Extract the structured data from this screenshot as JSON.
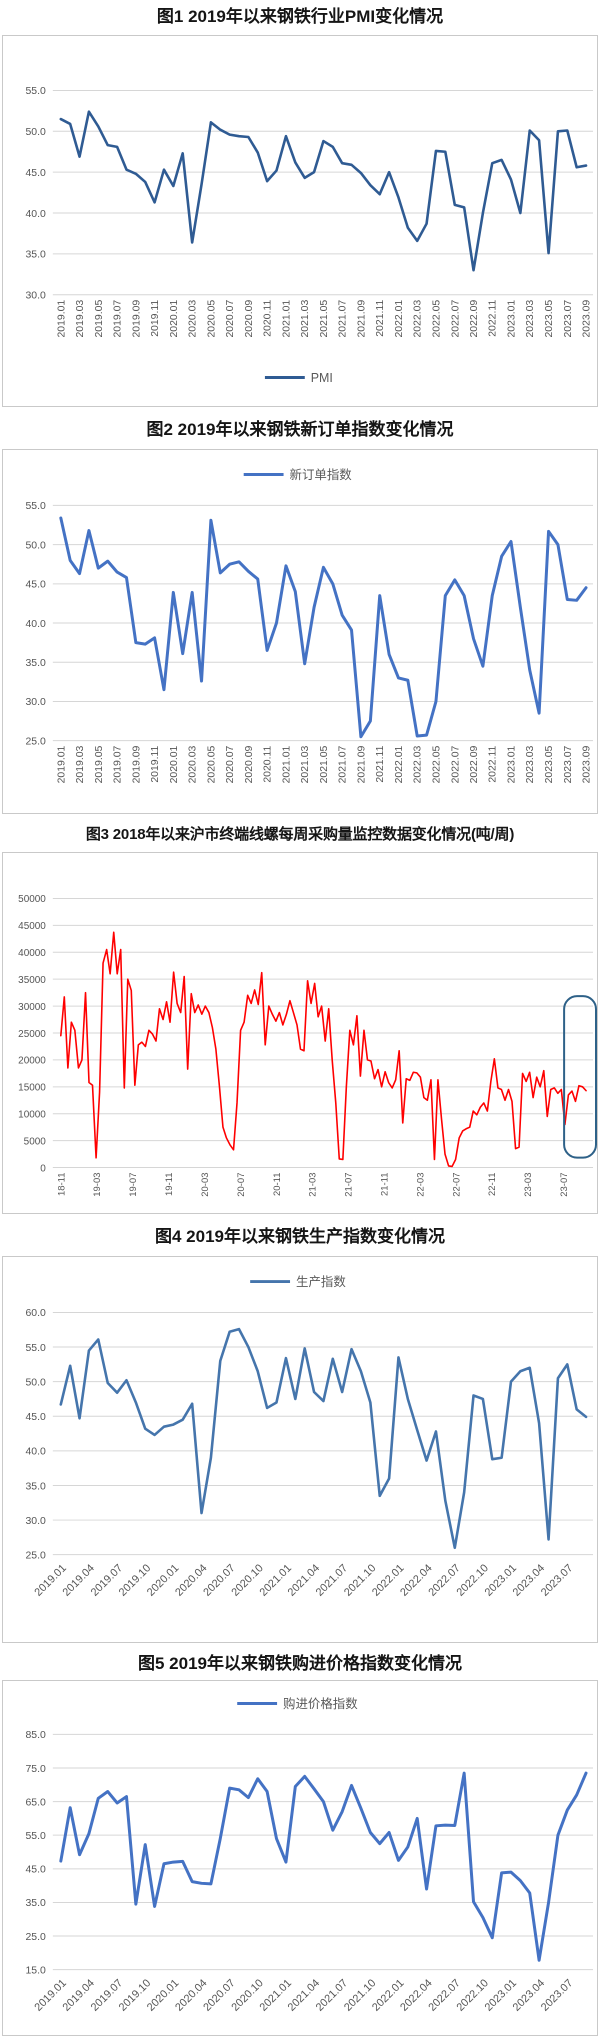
{
  "page": {
    "background": "#ffffff"
  },
  "chart_data": [
    {
      "type": "line",
      "title": "图1 2019年以来钢铁行业PMI变化情况",
      "legend": "PMI",
      "legend_position": "bottom-center",
      "line_color": "#2F5B93",
      "xlabel": "",
      "ylabel": "",
      "ylim": [
        30,
        55
      ],
      "grid": true,
      "yticks": [
        "55.0",
        "50.0",
        "45.0",
        "40.0",
        "35.0",
        "30.0"
      ],
      "x_tick_labels": [
        "2019.01",
        "2019.03",
        "2019.05",
        "2019.07",
        "2019.09",
        "2019.11",
        "2020.01",
        "2020.03",
        "2020.05",
        "2020.07",
        "2020.09",
        "2020.11",
        "2021.01",
        "2021.03",
        "2021.05",
        "2021.07",
        "2021.09",
        "2021.11",
        "2022.01",
        "2022.03",
        "2022.05",
        "2022.07",
        "2022.09",
        "2022.11",
        "2023.01",
        "2023.03",
        "2023.05",
        "2023.07",
        "2023.09"
      ],
      "x_range": [
        "2019.01",
        "2023.09"
      ],
      "series": [
        {
          "name": "PMI",
          "values": [
            51.5,
            50.9,
            46.9,
            52.4,
            50.6,
            48.3,
            48.1,
            45.3,
            44.8,
            43.8,
            41.3,
            45.3,
            43.3,
            47.3,
            36.4,
            43.5,
            51.1,
            50.2,
            49.6,
            49.4,
            49.3,
            47.4,
            43.9,
            45.2,
            49.4,
            46.2,
            44.3,
            45.0,
            48.8,
            48.1,
            46.1,
            45.9,
            44.9,
            43.4,
            42.3,
            45.0,
            41.9,
            38.2,
            36.6,
            38.7,
            47.6,
            47.5,
            41.0,
            40.7,
            33.0,
            40.0,
            46.1,
            46.5,
            44.1,
            40.0,
            50.1,
            48.9,
            35.1,
            50.0,
            50.1,
            45.6,
            45.8
          ]
        }
      ]
    },
    {
      "type": "line",
      "title": "图2 2019年以来钢铁新订单指数变化情况",
      "legend": "新订单指数",
      "legend_position": "top-center",
      "line_color": "#4472C4",
      "xlabel": "",
      "ylabel": "",
      "ylim": [
        25,
        55
      ],
      "grid": true,
      "yticks": [
        "55.0",
        "50.0",
        "45.0",
        "40.0",
        "35.0",
        "30.0",
        "25.0"
      ],
      "x_tick_labels": [
        "2019.01",
        "2019.03",
        "2019.05",
        "2019.07",
        "2019.09",
        "2019.11",
        "2020.01",
        "2020.03",
        "2020.05",
        "2020.07",
        "2020.09",
        "2020.11",
        "2021.01",
        "2021.03",
        "2021.05",
        "2021.07",
        "2021.09",
        "2021.11",
        "2022.01",
        "2022.03",
        "2022.05",
        "2022.07",
        "2022.09",
        "2022.11",
        "2023.01",
        "2023.03",
        "2023.05",
        "2023.07",
        "2023.09"
      ],
      "x_range": [
        "2019.01",
        "2023.09"
      ],
      "series": [
        {
          "name": "新订单指数",
          "values": [
            53.4,
            48.0,
            46.3,
            51.8,
            47.0,
            47.9,
            46.5,
            45.8,
            37.5,
            37.3,
            38.1,
            31.5,
            43.9,
            36.1,
            43.9,
            32.6,
            53.1,
            46.4,
            47.5,
            47.8,
            46.6,
            45.6,
            36.5,
            40.0,
            47.3,
            44.0,
            34.8,
            42.0,
            47.1,
            45.0,
            41.0,
            39.1,
            25.5,
            27.5,
            43.5,
            36.0,
            33.0,
            32.7,
            25.6,
            25.7,
            30.0,
            43.5,
            45.5,
            43.5,
            38.0,
            34.5,
            43.5,
            48.5,
            50.4,
            42.0,
            34.0,
            28.5,
            51.7,
            50.0,
            43.0,
            42.9,
            44.5
          ]
        }
      ]
    },
    {
      "type": "line",
      "title": "图3 2018年以来沪市终端线螺每周采购量监控数据变化情况(吨/周)",
      "legend": null,
      "legend_position": "none",
      "line_color": "#FF0000",
      "xlabel": "",
      "ylabel": "",
      "ylim": [
        0,
        50000
      ],
      "grid": true,
      "yticks": [
        "50000",
        "45000",
        "40000",
        "35000",
        "30000",
        "25000",
        "20000",
        "15000",
        "10000",
        "5000",
        "0"
      ],
      "x_tick_labels": [
        "18-11",
        "19-03",
        "19-07",
        "19-11",
        "20-03",
        "20-07",
        "20-11",
        "21-03",
        "21-07",
        "21-11",
        "22-03",
        "22-07",
        "22-11",
        "23-03",
        "23-07"
      ],
      "x_range": [
        "2018-11",
        "2023-09"
      ],
      "annotation": {
        "type": "box",
        "color": "#2E6188",
        "marks": "recent weeks highlighted"
      },
      "series": [
        {
          "name": "每周采购量(吨/周)",
          "values": [
            24500,
            31700,
            18500,
            27000,
            25500,
            18500,
            20000,
            32500,
            15800,
            15300,
            1800,
            14000,
            38000,
            40500,
            36000,
            43700,
            36000,
            40500,
            14800,
            35000,
            32900,
            15300,
            22800,
            23300,
            22500,
            25500,
            24800,
            23500,
            29500,
            27500,
            30800,
            27000,
            36300,
            30500,
            28800,
            35500,
            18300,
            32300,
            28800,
            30200,
            28500,
            30000,
            28800,
            26000,
            22000,
            15000,
            7500,
            5500,
            4200,
            3300,
            12000,
            25500,
            27000,
            32000,
            30500,
            33000,
            30300,
            36200,
            22800,
            30000,
            28500,
            27200,
            28800,
            26500,
            28500,
            31000,
            28800,
            26500,
            22000,
            21700,
            34700,
            30500,
            34200,
            28000,
            30000,
            23500,
            29500,
            20000,
            12000,
            1600,
            1500,
            15000,
            25500,
            22800,
            28200,
            17000,
            25500,
            20000,
            19800,
            16500,
            18200,
            15000,
            17800,
            15800,
            14800,
            16300,
            21700,
            8300,
            16500,
            16200,
            17700,
            17600,
            16800,
            13000,
            12500,
            16300,
            1500,
            16300,
            9000,
            2500,
            300,
            200,
            1500,
            5500,
            6800,
            7200,
            7500,
            10500,
            9800,
            11200,
            12000,
            10500,
            16000,
            20200,
            14800,
            14500,
            12500,
            14500,
            12300,
            3500,
            3800,
            17500,
            16000,
            17700,
            13000,
            16800,
            15000,
            18000,
            9500,
            14500,
            14800,
            13800,
            14500,
            8000,
            13500,
            14200,
            12300,
            15200,
            15000,
            14300
          ]
        }
      ]
    },
    {
      "type": "line",
      "title": "图4 2019年以来钢铁生产指数变化情况",
      "legend": "生产指数",
      "legend_position": "top-center",
      "line_color": "#4575AC",
      "xlabel": "",
      "ylabel": "",
      "ylim": [
        25,
        60
      ],
      "grid": true,
      "yticks": [
        "60.0",
        "55.0",
        "50.0",
        "45.0",
        "40.0",
        "35.0",
        "30.0",
        "25.0"
      ],
      "x_tick_labels": [
        "2019.01",
        "2019.04",
        "2019.07",
        "2019.10",
        "2020.01",
        "2020.04",
        "2020.07",
        "2020.10",
        "2021.01",
        "2021.04",
        "2021.07",
        "2021.10",
        "2022.01",
        "2022.04",
        "2022.07",
        "2022.10",
        "2023.01",
        "2023.04",
        "2023.07"
      ],
      "x_range": [
        "2019.01",
        "2023.09"
      ],
      "series": [
        {
          "name": "生产指数",
          "values": [
            46.7,
            52.3,
            44.7,
            54.5,
            56.1,
            49.8,
            48.4,
            50.2,
            47.0,
            43.2,
            42.3,
            43.5,
            43.8,
            44.5,
            46.8,
            31.0,
            39.0,
            53.0,
            57.2,
            57.6,
            55.0,
            51.5,
            46.2,
            47.0,
            53.4,
            47.5,
            54.8,
            48.5,
            47.2,
            53.3,
            48.5,
            54.7,
            51.5,
            47.0,
            33.5,
            36.0,
            53.5,
            47.5,
            43.0,
            38.6,
            42.8,
            32.8,
            26.0,
            34.0,
            48.0,
            47.5,
            38.8,
            39.0,
            50.0,
            51.5,
            52.0,
            44.0,
            27.2,
            50.5,
            52.5,
            46.0,
            44.9
          ]
        }
      ]
    },
    {
      "type": "line",
      "title": "图5 2019年以来钢铁购进价格指数变化情况",
      "legend": "购进价格指数",
      "legend_position": "top-center",
      "line_color": "#4472C4",
      "xlabel": "",
      "ylabel": "",
      "ylim": [
        15,
        85
      ],
      "grid": true,
      "yticks": [
        "85.0",
        "75.0",
        "65.0",
        "55.0",
        "45.0",
        "35.0",
        "25.0",
        "15.0"
      ],
      "x_tick_labels": [
        "2019.01",
        "2019.04",
        "2019.07",
        "2019.10",
        "2020.01",
        "2020.04",
        "2020.07",
        "2020.10",
        "2021.01",
        "2021.04",
        "2021.07",
        "2021.10",
        "2022.01",
        "2022.04",
        "2022.07",
        "2022.10",
        "2023.01",
        "2023.04",
        "2023.07"
      ],
      "x_range": [
        "2019.01",
        "2023.09"
      ],
      "series": [
        {
          "name": "购进价格指数",
          "values": [
            47.3,
            63.2,
            49.2,
            55.5,
            66.0,
            68.0,
            64.6,
            66.5,
            34.5,
            52.2,
            33.8,
            46.5,
            47.0,
            47.2,
            41.2,
            40.7,
            40.5,
            54.0,
            69.0,
            68.5,
            66.2,
            71.8,
            68.0,
            54.0,
            47.0,
            69.5,
            72.5,
            68.8,
            65.0,
            56.5,
            62.0,
            69.8,
            63.0,
            55.8,
            52.5,
            55.8,
            47.5,
            51.5,
            60.0,
            39.0,
            57.8,
            58.0,
            57.9,
            73.5,
            35.2,
            30.5,
            24.5,
            43.8,
            44.0,
            41.5,
            37.8,
            17.8,
            35.0,
            55.0,
            62.5,
            67.0,
            73.5
          ]
        }
      ]
    }
  ]
}
